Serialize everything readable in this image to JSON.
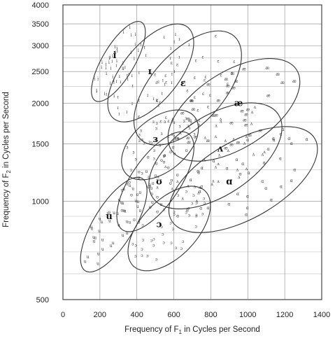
{
  "chart_data": {
    "type": "scatter",
    "xlabel_main": "Frequency of F",
    "xlabel_sub": "1",
    "xlabel_tail": " in Cycles per Second",
    "ylabel_main": "Frequency of F",
    "ylabel_sub": "2",
    "ylabel_tail": " in Cycles per Second",
    "xlim": [
      0,
      1400
    ],
    "ylim": [
      500,
      4000
    ],
    "y_scale": "log",
    "grid": true,
    "x_ticks": [
      0,
      200,
      400,
      600,
      800,
      1000,
      1200,
      1400
    ],
    "y_ticks": [
      500,
      1000,
      1500,
      2000,
      2500,
      3000,
      3500,
      4000
    ],
    "vowel_regions": [
      {
        "symbol": "i",
        "cx": 280,
        "cy": 2800,
        "f1_range": [
          200,
          400
        ],
        "f2_range": [
          2000,
          3600
        ]
      },
      {
        "symbol": "ɪ",
        "cx": 470,
        "cy": 2500,
        "f1_range": [
          300,
          650
        ],
        "f2_range": [
          1750,
          3500
        ]
      },
      {
        "symbol": "ɛ",
        "cx": 650,
        "cy": 2300,
        "f1_range": [
          450,
          900
        ],
        "f2_range": [
          1500,
          3300
        ]
      },
      {
        "symbol": "æ",
        "cx": 950,
        "cy": 2000,
        "f1_range": [
          600,
          1250
        ],
        "f2_range": [
          1400,
          2600
        ]
      },
      {
        "symbol": "ɜ",
        "cx": 500,
        "cy": 1550,
        "f1_range": [
          350,
          700
        ],
        "f2_range": [
          1200,
          1850
        ]
      },
      {
        "symbol": "ʌ",
        "cx": 850,
        "cy": 1450,
        "f1_range": [
          500,
          1150
        ],
        "f2_range": [
          1000,
          1900
        ]
      },
      {
        "symbol": "ʊ",
        "cx": 520,
        "cy": 1150,
        "f1_range": [
          350,
          650
        ],
        "f2_range": [
          800,
          1650
        ]
      },
      {
        "symbol": "ɑ",
        "cx": 900,
        "cy": 1150,
        "f1_range": [
          600,
          1350
        ],
        "f2_range": [
          850,
          1600
        ]
      },
      {
        "symbol": "u",
        "cx": 250,
        "cy": 900,
        "f1_range": [
          150,
          400
        ],
        "f2_range": [
          600,
          1200
        ]
      },
      {
        "symbol": "ɔ",
        "cx": 520,
        "cy": 850,
        "f1_range": [
          400,
          750
        ],
        "f2_range": [
          620,
          1100
        ]
      }
    ]
  }
}
